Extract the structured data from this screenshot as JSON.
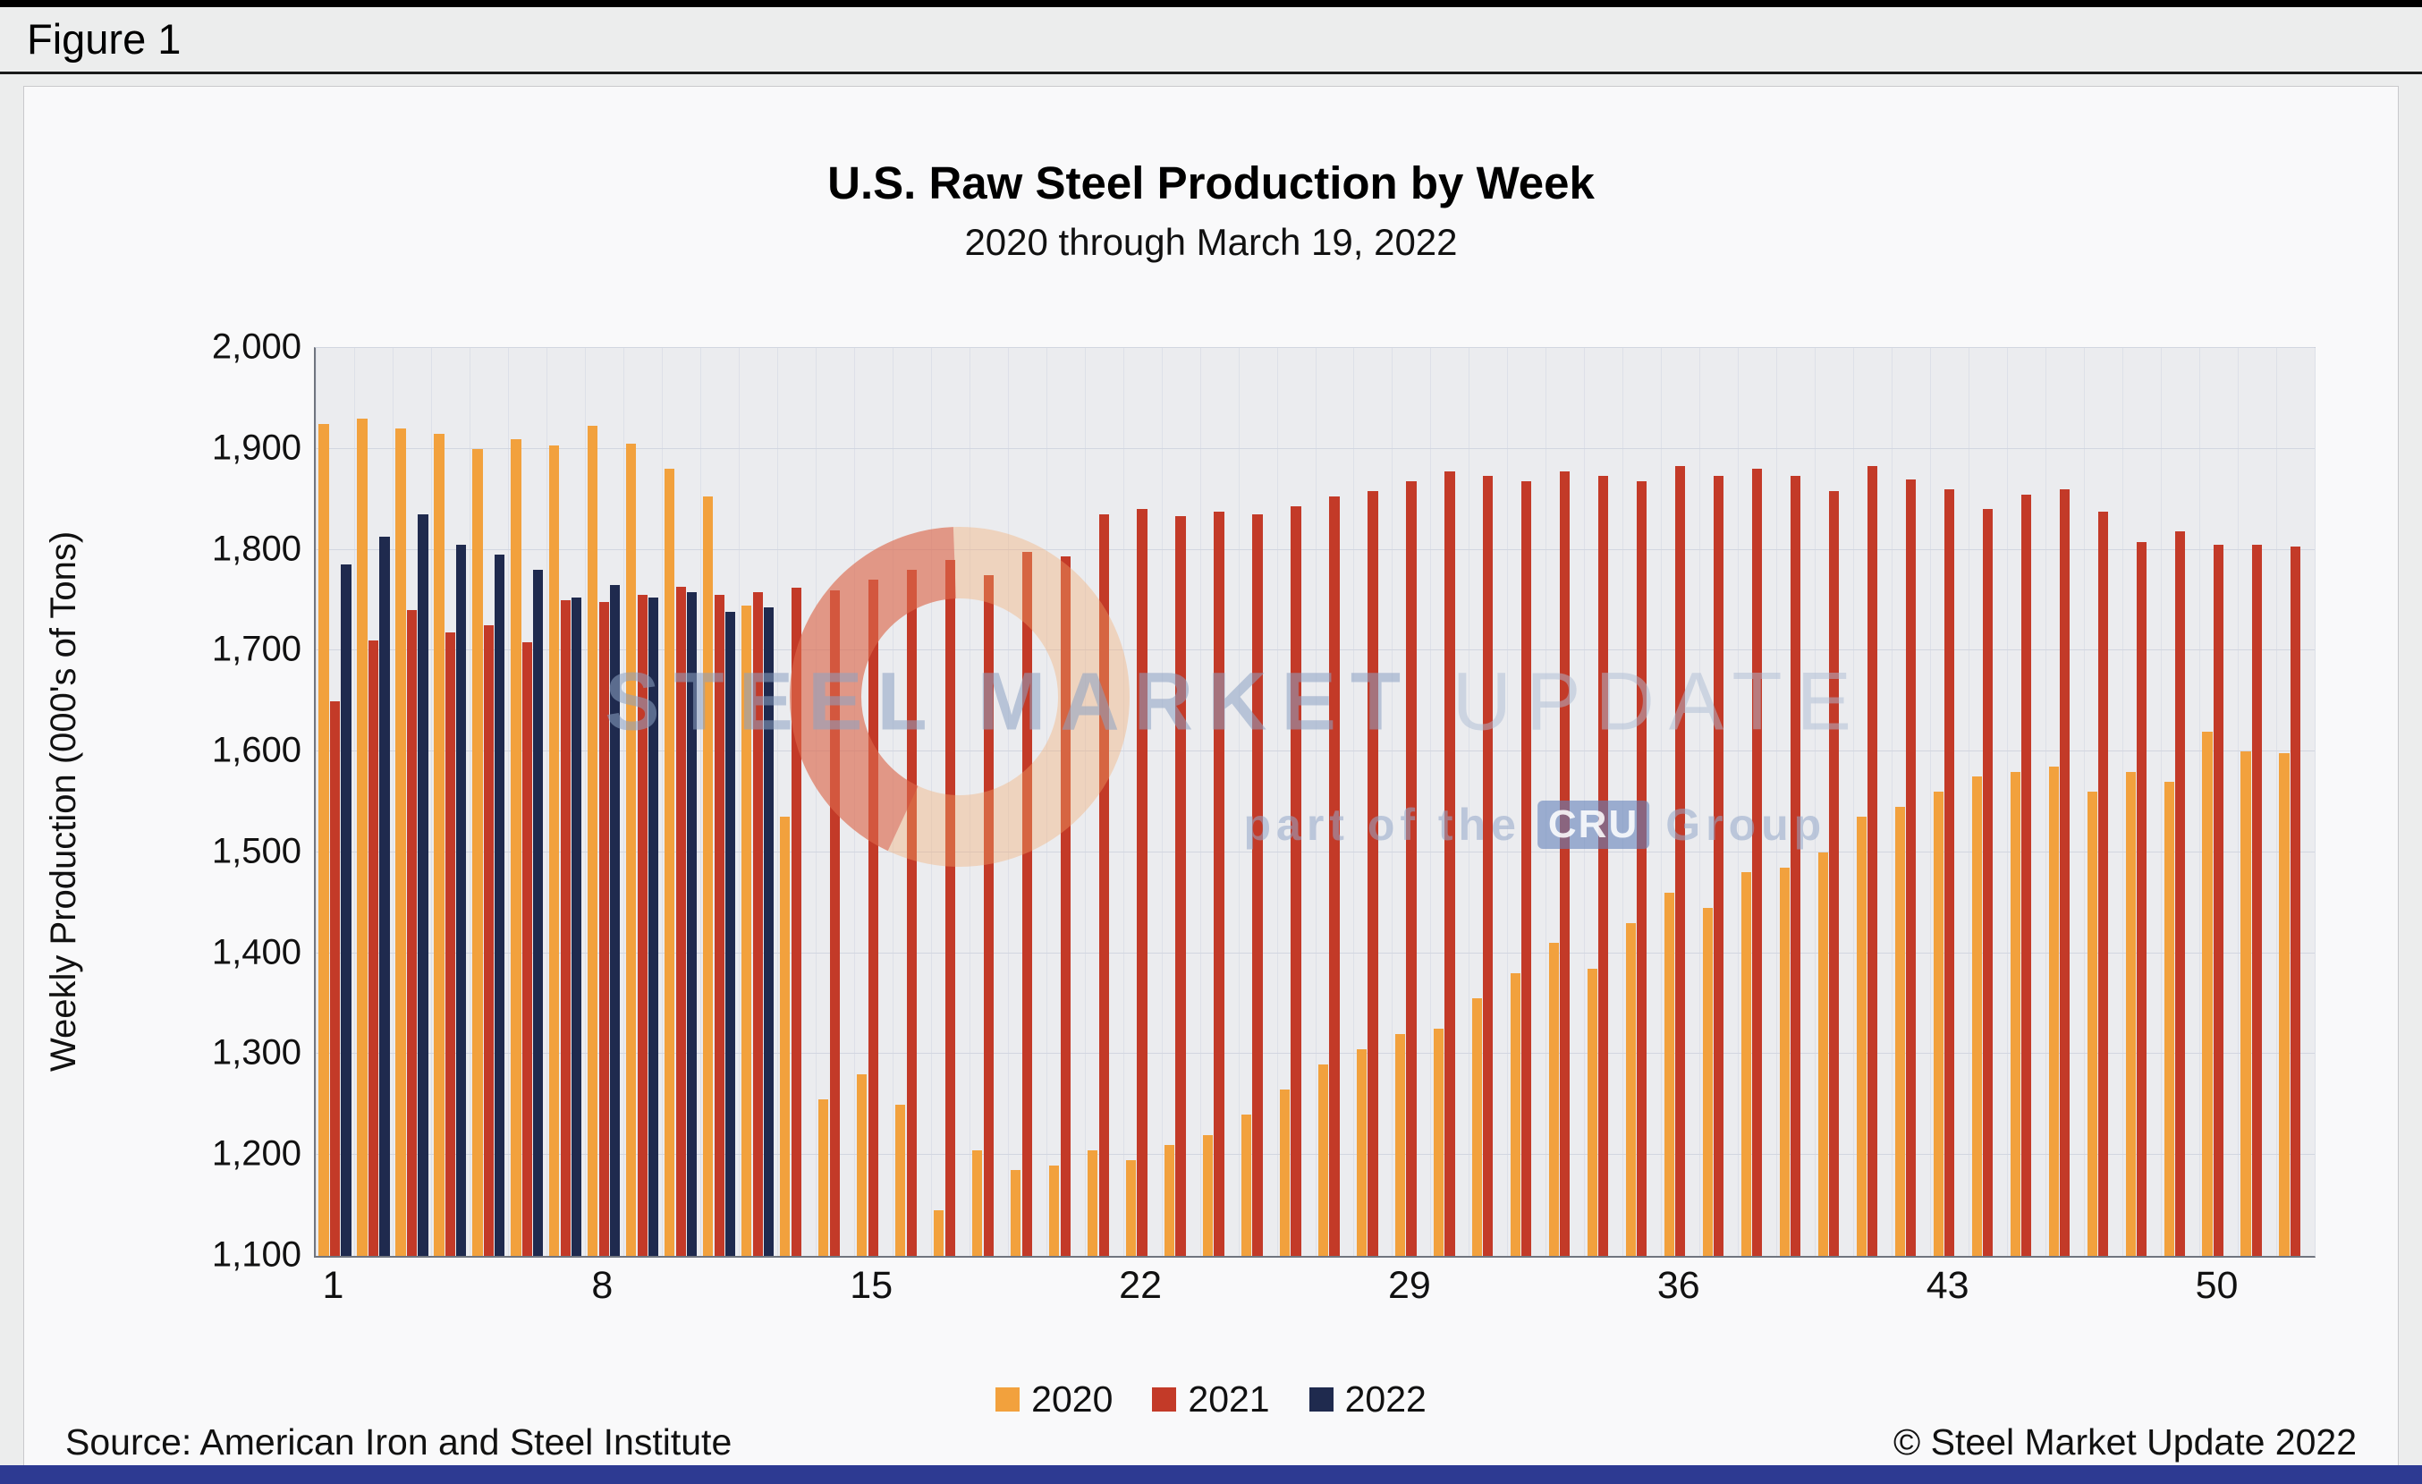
{
  "figure_label": "Figure 1",
  "title": "U.S. Raw Steel Production by Week",
  "subtitle": "2020 through March 19, 2022",
  "ylabel": "Weekly Production (000's of Tons)",
  "source": "Source: American Iron and Steel Institute",
  "copyright": "© Steel Market Update 2022",
  "watermark": {
    "title_strong": "STEEL MARKET",
    "title_light": "UPDATE",
    "tagline_pre": "part of the",
    "badge": "CRU",
    "tagline_post": "Group"
  },
  "legend": [
    {
      "label": "2020",
      "color": "#F2A13D"
    },
    {
      "label": "2021",
      "color": "#C33A28"
    },
    {
      "label": "2022",
      "color": "#1F2A4E"
    }
  ],
  "colors": {
    "series_2020": "#F2A13D",
    "series_2021": "#C33A28",
    "series_2022": "#1F2A4E",
    "bottom_bar": "#2D3A92",
    "plot_background": "#EBECEF"
  },
  "chart_data": {
    "type": "bar",
    "x_range": [
      1,
      52
    ],
    "weeks": 52,
    "xticks": [
      1,
      8,
      15,
      22,
      29,
      36,
      43,
      50
    ],
    "ylim": [
      1100,
      2000
    ],
    "ytick_values": [
      1100,
      1200,
      1300,
      1400,
      1500,
      1600,
      1700,
      1800,
      1900,
      2000
    ],
    "ytick_labels": [
      "1,100",
      "1,200",
      "1,300",
      "1,400",
      "1,500",
      "1,600",
      "1,700",
      "1,800",
      "1,900",
      "2,000"
    ],
    "grid": true,
    "legend_position": "bottom",
    "series": [
      {
        "name": "2020",
        "color": "#F2A13D",
        "values": [
          1925,
          1930,
          1920,
          1915,
          1900,
          1910,
          1903,
          1923,
          1905,
          1880,
          1853,
          1745,
          1535,
          1255,
          1280,
          1250,
          1145,
          1205,
          1185,
          1190,
          1205,
          1195,
          1210,
          1220,
          1240,
          1265,
          1290,
          1305,
          1320,
          1325,
          1355,
          1380,
          1410,
          1385,
          1430,
          1460,
          1445,
          1480,
          1485,
          1500,
          1535,
          1545,
          1560,
          1575,
          1580,
          1585,
          1560,
          1580,
          1570,
          1620,
          1600,
          1598
        ]
      },
      {
        "name": "2021",
        "color": "#C33A28",
        "values": [
          1650,
          1710,
          1740,
          1718,
          1725,
          1708,
          1750,
          1748,
          1755,
          1763,
          1755,
          1758,
          1762,
          1760,
          1770,
          1780,
          1790,
          1775,
          1798,
          1793,
          1835,
          1840,
          1833,
          1838,
          1835,
          1843,
          1853,
          1858,
          1868,
          1878,
          1873,
          1868,
          1878,
          1873,
          1868,
          1883,
          1873,
          1880,
          1873,
          1858,
          1883,
          1870,
          1860,
          1840,
          1855,
          1860,
          1838,
          1808,
          1818,
          1805,
          1805,
          1803
        ]
      },
      {
        "name": "2022",
        "color": "#1F2A4E",
        "values": [
          1785,
          1813,
          1835,
          1805,
          1795,
          1780,
          1753,
          1765,
          1753,
          1758,
          1738,
          1743
        ]
      }
    ]
  }
}
